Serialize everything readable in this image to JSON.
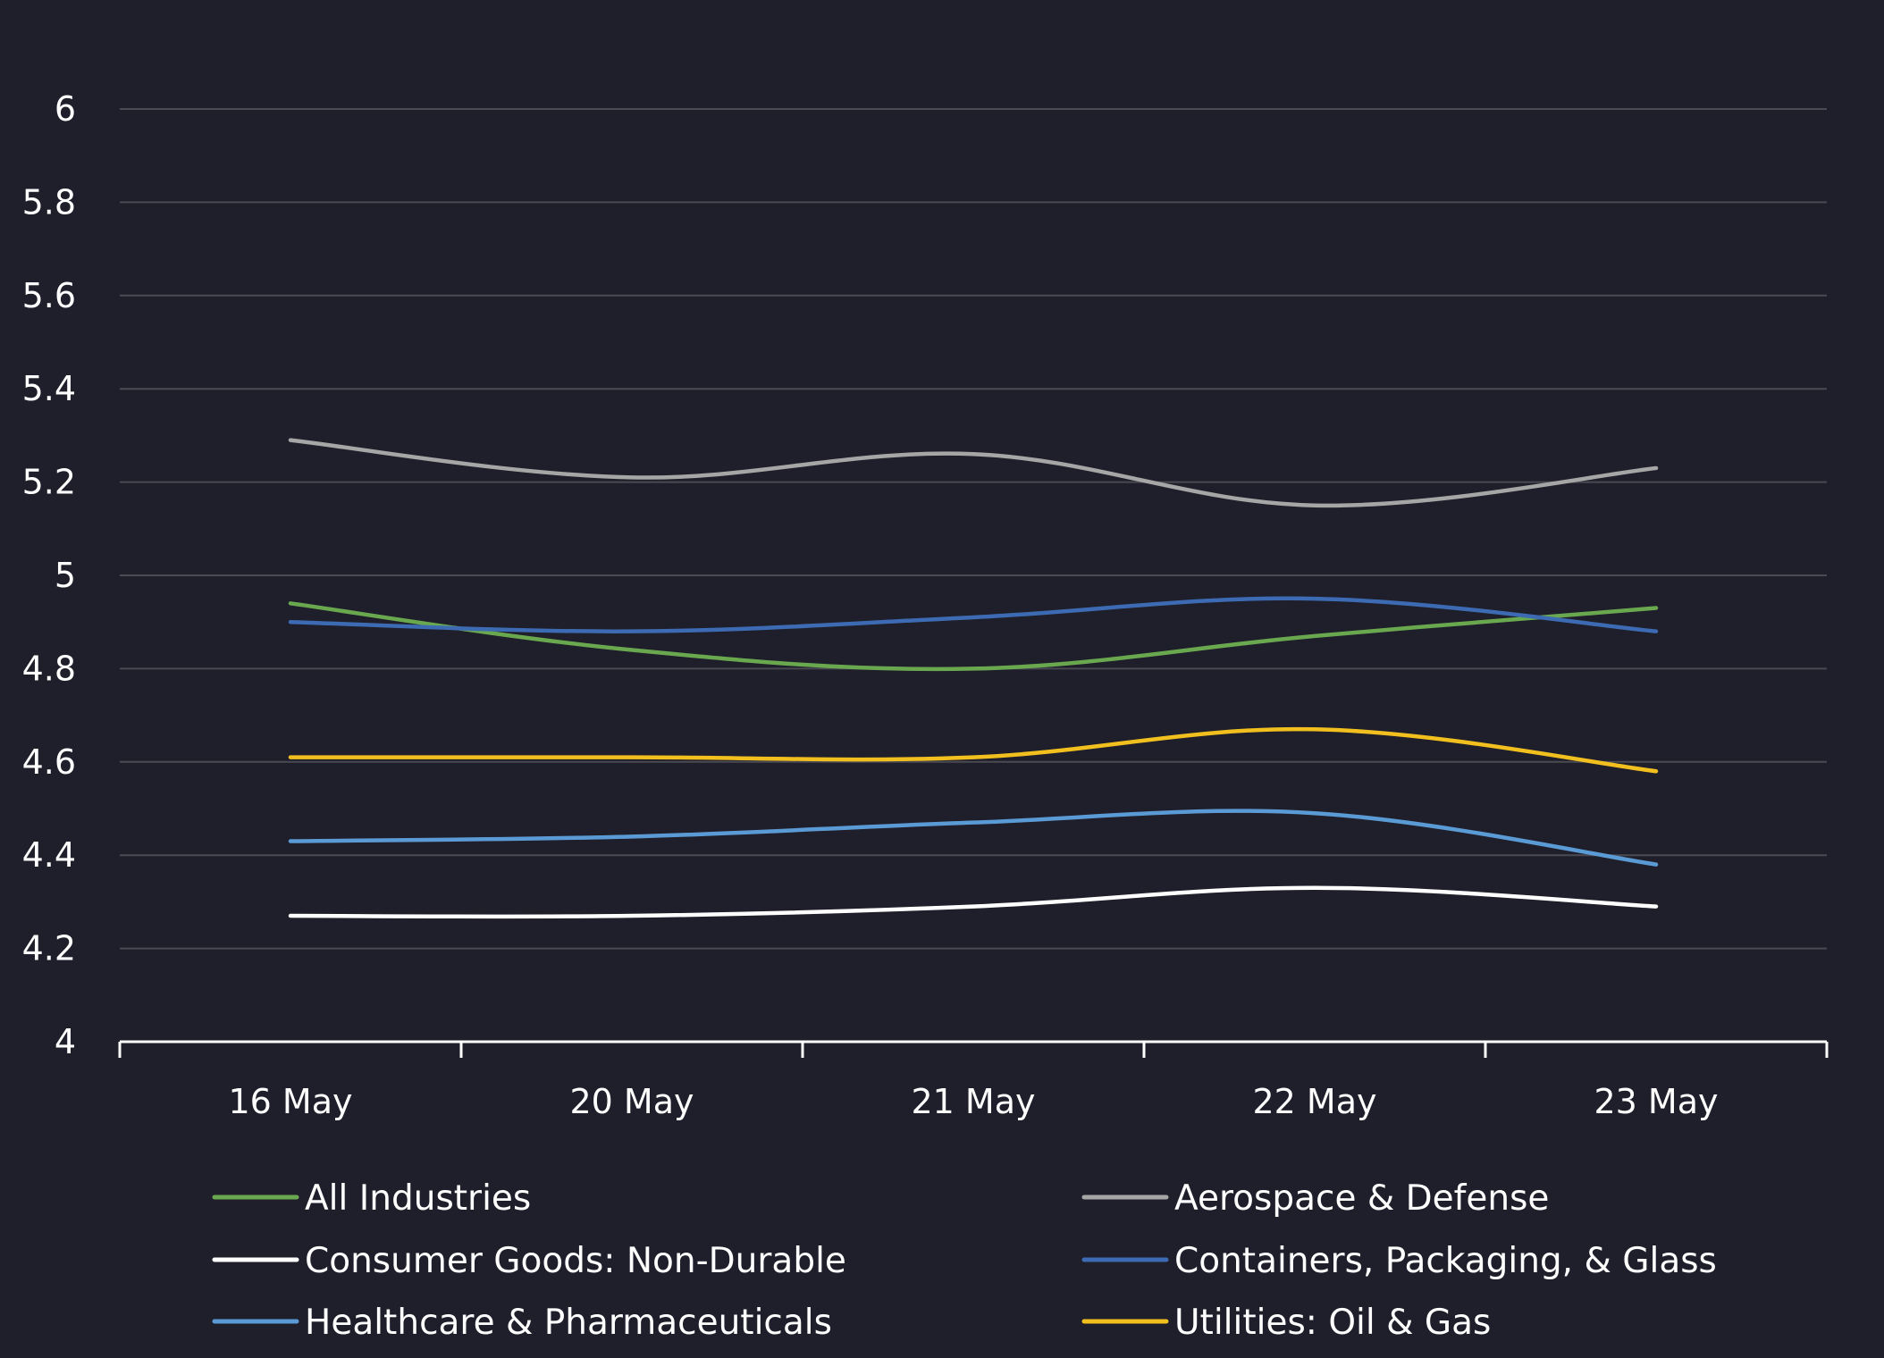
{
  "chart_data": {
    "type": "line",
    "title": "",
    "xlabel": "",
    "ylabel": "",
    "categories": [
      "16 May",
      "20 May",
      "21 May",
      "22 May",
      "23 May"
    ],
    "ylim": [
      4,
      6
    ],
    "yticks": [
      "4",
      "4.2",
      "4.4",
      "4.6",
      "4.8",
      "5",
      "5.2",
      "5.4",
      "5.6",
      "5.8",
      "6"
    ],
    "grid": true,
    "smooth": true,
    "legend_position": "bottom",
    "series": [
      {
        "name": "All Industries",
        "color": "#6aa84f",
        "values": [
          4.94,
          4.84,
          4.8,
          4.87,
          4.93
        ]
      },
      {
        "name": "Aerospace & Defense",
        "color": "#a6a6a6",
        "values": [
          5.29,
          5.21,
          5.26,
          5.15,
          5.23
        ]
      },
      {
        "name": "Consumer Goods: Non-Durable",
        "color": "#ffffff",
        "values": [
          4.27,
          4.27,
          4.29,
          4.33,
          4.29
        ]
      },
      {
        "name": "Containers, Packaging, & Glass",
        "color": "#3d6bb3",
        "values": [
          4.9,
          4.88,
          4.91,
          4.95,
          4.88
        ]
      },
      {
        "name": "Healthcare & Pharmaceuticals",
        "color": "#5b9bd5",
        "values": [
          4.43,
          4.44,
          4.47,
          4.49,
          4.38
        ]
      },
      {
        "name": "Utilities: Oil & Gas",
        "color": "#f2c01e",
        "values": [
          4.61,
          4.61,
          4.61,
          4.67,
          4.58
        ]
      }
    ]
  },
  "colors": {
    "background": "#1f1e2b",
    "grid": "#4a4a52",
    "axis": "#ffffff"
  }
}
